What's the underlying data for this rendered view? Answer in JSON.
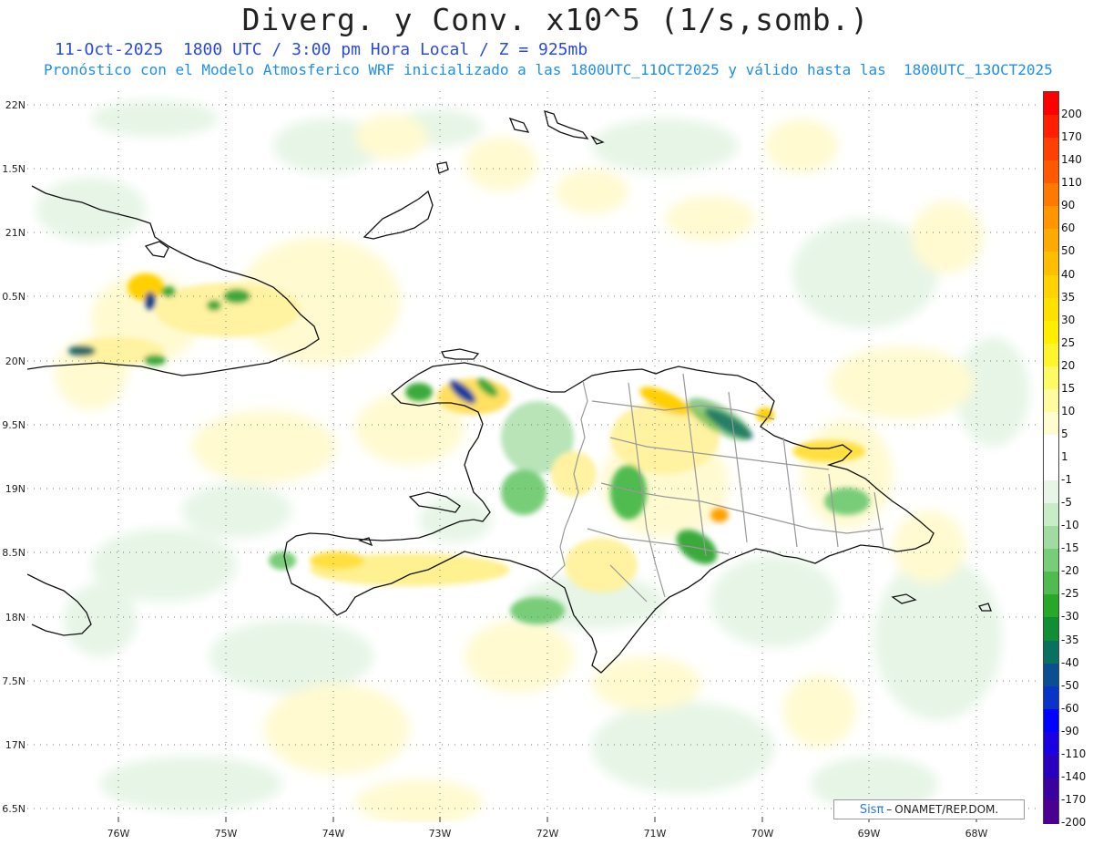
{
  "title": "Diverg. y Conv. x10^5 (1/s,somb.)",
  "subtitle_line1": "11-Oct-2025  1800 UTC / 3:00 pm Hora Local / Z = 925mb",
  "subtitle_line2": "Pronóstico con el Modelo Atmosferico WRF inicializado a las 1800UTC_11OCT2025 y válido hasta las  1800UTC_13OCT2025",
  "lat_labels": [
    "22N",
    "1.5N",
    "21N",
    "0.5N",
    "20N",
    "9.5N",
    "19N",
    "8.5N",
    "18N",
    "7.5N",
    "17N",
    "6.5N"
  ],
  "lon_labels": [
    "76W",
    "75W",
    "74W",
    "73W",
    "72W",
    "71W",
    "70W",
    "69W",
    "68W"
  ],
  "colorbar": {
    "labels": [
      "200",
      "170",
      "140",
      "110",
      "90",
      "60",
      "50",
      "40",
      "35",
      "30",
      "25",
      "20",
      "15",
      "10",
      "5",
      "1",
      "-1",
      "-5",
      "-10",
      "-15",
      "-20",
      "-25",
      "-30",
      "-35",
      "-40",
      "-50",
      "-60",
      "-90",
      "-110",
      "-140",
      "-170",
      "-200"
    ],
    "colors": [
      "#ff0000",
      "#ff2000",
      "#ff4000",
      "#ff5a00",
      "#ff7800",
      "#ff9600",
      "#ffaa00",
      "#ffbe00",
      "#ffd200",
      "#ffe100",
      "#ffee00",
      "#fff52e",
      "#fffa64",
      "#fffca0",
      "#fffcd0",
      "#ffffff",
      "#ffffff",
      "#e6f5e6",
      "#c8ecc8",
      "#a0dca0",
      "#78cd78",
      "#50bc50",
      "#28a828",
      "#108e34",
      "#0a7060",
      "#0a5090",
      "#0a34c8",
      "#0000ff",
      "#1a00e0",
      "#2a00c0",
      "#3a00a0",
      "#4a0090"
    ]
  },
  "credit": {
    "brand": "Sisπ",
    "separator": "–",
    "org": "ONAMET/REP.DOM."
  }
}
